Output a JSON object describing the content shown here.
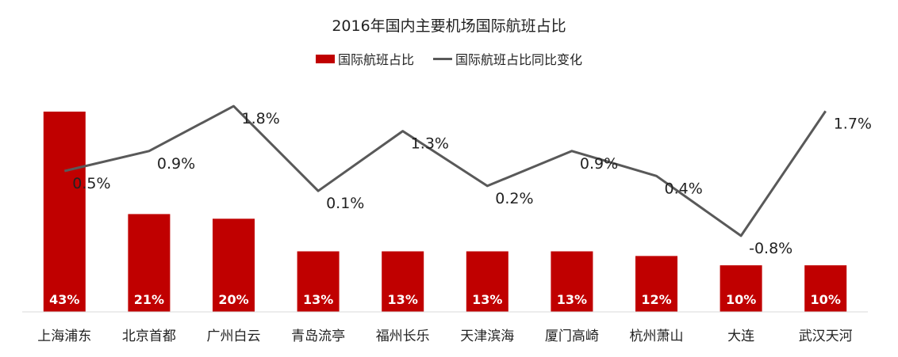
{
  "chart_data": {
    "type": "bar",
    "title": "2016年国内主要机场国际航班占比",
    "categories": [
      "上海浦东",
      "北京首都",
      "广州白云",
      "青岛流亭",
      "福州长乐",
      "天津滨海",
      "厦门高崎",
      "杭州萧山",
      "大连",
      "武汉天河"
    ],
    "series": [
      {
        "name": "国际航班占比",
        "type": "bar",
        "values": [
          43,
          21,
          20,
          13,
          13,
          13,
          13,
          12,
          10,
          10
        ],
        "labels": [
          "43%",
          "21%",
          "20%",
          "13%",
          "13%",
          "13%",
          "13%",
          "12%",
          "10%",
          "10%"
        ],
        "color": "#c00000"
      },
      {
        "name": "国际航班占比同比变化",
        "type": "line",
        "values": [
          0.5,
          0.9,
          1.8,
          0.1,
          1.3,
          0.2,
          0.9,
          0.4,
          -0.8,
          1.7
        ],
        "labels": [
          "0.5%",
          "0.9%",
          "1.8%",
          "0.1%",
          "1.3%",
          "0.2%",
          "0.9%",
          "0.4%",
          "-0.8%",
          "1.7%"
        ],
        "color": "#595959"
      }
    ],
    "legend_position": "top",
    "grid": false
  }
}
